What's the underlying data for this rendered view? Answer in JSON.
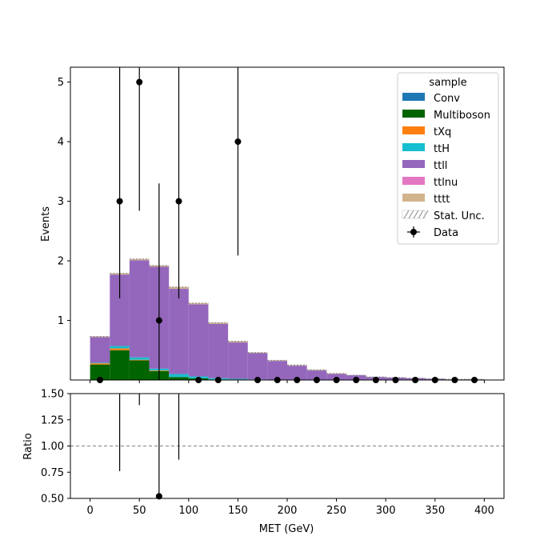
{
  "chart_data": {
    "type": "bar",
    "stacked": true,
    "xlabel": "MET (GeV)",
    "ylabel": "Events",
    "ratio_ylabel": "Ratio",
    "xlim": [
      -20,
      420
    ],
    "ylim": [
      0,
      5.25
    ],
    "ratio_ylim": [
      0.5,
      1.5
    ],
    "x_ticks": [
      0,
      50,
      100,
      150,
      200,
      250,
      300,
      350,
      400
    ],
    "y_ticks": [
      1,
      2,
      3,
      4,
      5
    ],
    "ratio_ticks": [
      "0.50",
      "0.75",
      "1.00",
      "1.25",
      "1.50"
    ],
    "grid": false,
    "legend": {
      "title": "sample",
      "placement": "top-right",
      "stat_unc_label": "Stat. Unc.",
      "data_label": "Data"
    },
    "bin_edges": [
      0,
      20,
      40,
      60,
      80,
      100,
      120,
      140,
      160,
      180,
      200,
      220,
      240,
      260,
      280,
      300,
      320,
      340,
      360,
      380,
      400
    ],
    "series": [
      {
        "name": "Conv",
        "color": "#1f77b4",
        "values": [
          0,
          0,
          0,
          0,
          0,
          0,
          0,
          0,
          0,
          0,
          0,
          0,
          0,
          0,
          0,
          0,
          0,
          0,
          0,
          0
        ]
      },
      {
        "name": "Multiboson",
        "color": "#006400",
        "values": [
          0.26,
          0.5,
          0.33,
          0.15,
          0.05,
          0.03,
          0.01,
          0.01,
          0,
          0,
          0,
          0,
          0,
          0,
          0,
          0,
          0,
          0,
          0,
          0
        ]
      },
      {
        "name": "tXq",
        "color": "#ff7f0e",
        "values": [
          0.02,
          0.03,
          0.01,
          0.01,
          0,
          0,
          0,
          0,
          0,
          0,
          0,
          0,
          0,
          0,
          0,
          0,
          0,
          0,
          0,
          0
        ]
      },
      {
        "name": "ttH",
        "color": "#17becf",
        "values": [
          0.01,
          0.04,
          0.04,
          0.03,
          0.05,
          0.03,
          0.02,
          0.01,
          0.01,
          0,
          0,
          0,
          0,
          0,
          0,
          0,
          0,
          0,
          0,
          0
        ]
      },
      {
        "name": "ttll",
        "color": "#9467bd",
        "values": [
          0.43,
          1.2,
          1.63,
          1.71,
          1.43,
          1.21,
          0.91,
          0.61,
          0.44,
          0.32,
          0.24,
          0.16,
          0.1,
          0.08,
          0.05,
          0.04,
          0.03,
          0.02,
          0.01,
          0.01
        ]
      },
      {
        "name": "ttlnu",
        "color": "#e377c2",
        "values": [
          0,
          0,
          0,
          0,
          0,
          0,
          0,
          0,
          0,
          0,
          0,
          0,
          0,
          0,
          0,
          0,
          0,
          0,
          0,
          0
        ]
      },
      {
        "name": "tttt",
        "color": "#d2b48c",
        "values": [
          0.01,
          0.02,
          0.02,
          0.02,
          0.03,
          0.02,
          0.02,
          0.02,
          0.01,
          0.01,
          0.01,
          0.01,
          0.01,
          0,
          0,
          0,
          0,
          0,
          0,
          0
        ]
      }
    ],
    "data_points": {
      "x": [
        10,
        30,
        50,
        70,
        90,
        110,
        130,
        150,
        170,
        190,
        210,
        230,
        250,
        270,
        290,
        310,
        330,
        350,
        370,
        390
      ],
      "y": [
        0,
        3,
        5,
        1,
        3,
        0,
        0,
        4,
        0,
        0,
        0,
        0,
        0,
        0,
        0,
        0,
        0,
        0,
        0,
        0
      ],
      "err_low": [
        0,
        1.63,
        2.16,
        1.0,
        1.63,
        0,
        0,
        1.91,
        0,
        0,
        0,
        0,
        0,
        0,
        0,
        0,
        0,
        0,
        0,
        0
      ],
      "err_high": [
        0,
        2.92,
        3.38,
        2.3,
        2.92,
        0,
        0,
        3.16,
        0,
        0,
        0,
        0,
        0,
        0,
        0,
        0,
        0,
        0,
        0,
        0
      ]
    },
    "ratio_points": {
      "x": [
        30,
        50,
        70,
        90
      ],
      "y": [
        1.65,
        2.45,
        0.52,
        1.9
      ],
      "err_low": [
        0.89,
        1.06,
        0.52,
        1.03
      ],
      "err_high": [
        1.6,
        1.66,
        1.2,
        1.85
      ]
    }
  }
}
